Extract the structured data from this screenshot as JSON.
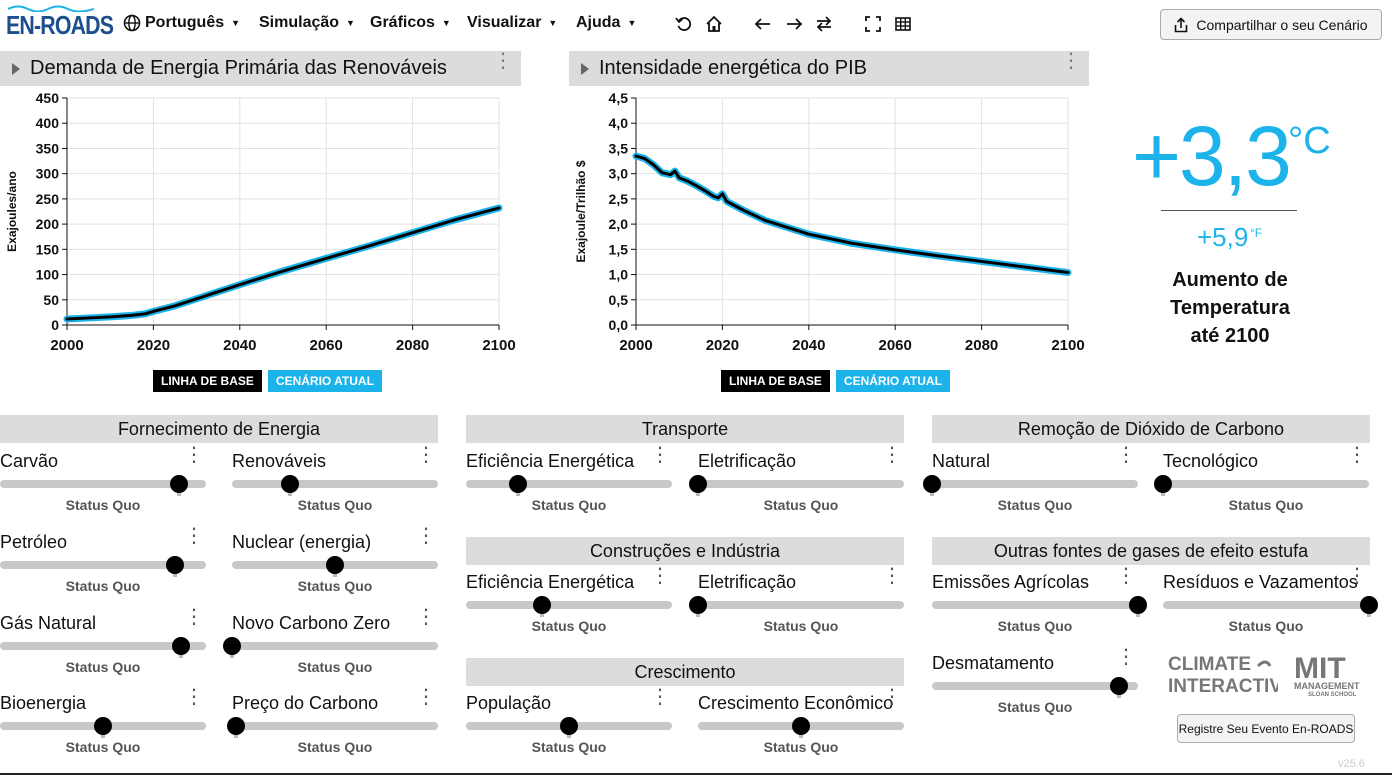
{
  "app": {
    "logo": "EN-ROADS"
  },
  "menu": {
    "language": "Português",
    "simulation": "Simulação",
    "graphs": "Gráficos",
    "view": "Visualizar",
    "help": "Ajuda"
  },
  "share_button": "Compartilhar o seu Cenário",
  "legend": {
    "baseline": "LINHA DE BASE",
    "current": "CENÁRIO ATUAL"
  },
  "colors": {
    "baseline": "#000000",
    "current": "#1bb3ea",
    "header_bg": "#dcdcdc"
  },
  "chart_data": [
    {
      "type": "line",
      "title": "Demanda de Energia Primária das Renováveis",
      "ylabel": "Exajoules/ano",
      "xlabel": "",
      "xlim": [
        2000,
        2100
      ],
      "ylim": [
        0,
        450
      ],
      "xticks": [
        "2000",
        "2020",
        "2040",
        "2060",
        "2080",
        "2100"
      ],
      "yticks": [
        "0",
        "50",
        "100",
        "150",
        "200",
        "250",
        "300",
        "350",
        "400",
        "450"
      ],
      "x": [
        2000,
        2005,
        2010,
        2015,
        2018,
        2020,
        2025,
        2030,
        2035,
        2040,
        2050,
        2060,
        2070,
        2080,
        2090,
        2100
      ],
      "series": [
        {
          "name": "LINHA DE BASE",
          "values": [
            12,
            14,
            16,
            19,
            22,
            27,
            38,
            52,
            66,
            80,
            107,
            132,
            157,
            183,
            209,
            232
          ]
        },
        {
          "name": "CENÁRIO ATUAL",
          "values": [
            12,
            14,
            16,
            19,
            22,
            27,
            38,
            52,
            66,
            80,
            107,
            132,
            157,
            183,
            209,
            232
          ]
        }
      ],
      "grid": true
    },
    {
      "type": "line",
      "title": "Intensidade energética do PIB",
      "ylabel": "Exajoule/Trilhão $",
      "xlabel": "",
      "xlim": [
        2000,
        2100
      ],
      "ylim": [
        0,
        4.5
      ],
      "xticks": [
        "2000",
        "2020",
        "2040",
        "2060",
        "2080",
        "2100"
      ],
      "yticks": [
        "0,0",
        "0,5",
        "1,0",
        "1,5",
        "2,0",
        "2,5",
        "3,0",
        "3,5",
        "4,0",
        "4,5"
      ],
      "x": [
        2000,
        2002,
        2004,
        2006,
        2008,
        2009,
        2010,
        2012,
        2014,
        2016,
        2018,
        2019,
        2020,
        2021,
        2025,
        2030,
        2040,
        2050,
        2060,
        2070,
        2080,
        2090,
        2100
      ],
      "series": [
        {
          "name": "LINHA DE BASE",
          "values": [
            3.35,
            3.3,
            3.18,
            3.02,
            2.98,
            3.05,
            2.92,
            2.85,
            2.76,
            2.66,
            2.55,
            2.52,
            2.6,
            2.45,
            2.27,
            2.07,
            1.8,
            1.62,
            1.49,
            1.37,
            1.26,
            1.15,
            1.04
          ]
        },
        {
          "name": "CENÁRIO ATUAL",
          "values": [
            3.35,
            3.3,
            3.18,
            3.02,
            2.98,
            3.05,
            2.92,
            2.85,
            2.76,
            2.66,
            2.55,
            2.52,
            2.6,
            2.45,
            2.27,
            2.07,
            1.8,
            1.62,
            1.49,
            1.37,
            1.26,
            1.15,
            1.04
          ]
        }
      ],
      "grid": true
    }
  ],
  "temperature": {
    "celsius": "+3,3",
    "celsius_unit": "°C",
    "fahrenheit": "+5,9",
    "fahrenheit_unit": "°F",
    "label_line1": "Aumento de",
    "label_line2": "Temperatura",
    "label_line3": "até 2100"
  },
  "sections": {
    "energy_supply": "Fornecimento de Energia",
    "transport": "Transporte",
    "buildings": "Construções e Indústria",
    "growth": "Crescimento",
    "carbon_removal": "Remoção de Dióxido de Carbono",
    "other_gases": "Outras fontes de gases de efeito estufa"
  },
  "sliders": {
    "coal": {
      "label": "Carvão",
      "status": "Status Quo",
      "value": 0.87
    },
    "renewables": {
      "label": "Renováveis",
      "status": "Status Quo",
      "value": 0.28
    },
    "oil": {
      "label": "Petróleo",
      "status": "Status Quo",
      "value": 0.85
    },
    "nuclear": {
      "label": "Nuclear (energia)",
      "status": "Status Quo",
      "value": 0.5
    },
    "natural_gas": {
      "label": "Gás Natural",
      "status": "Status Quo",
      "value": 0.88
    },
    "new_zero_carbon": {
      "label": "Novo Carbono Zero",
      "status": "Status Quo",
      "value": 0.0
    },
    "bioenergy": {
      "label": "Bioenergia",
      "status": "Status Quo",
      "value": 0.5
    },
    "carbon_price": {
      "label": "Preço do Carbono",
      "status": "Status Quo",
      "value": 0.02
    },
    "transport_efficiency": {
      "label": "Eficiência Energética",
      "status": "Status Quo",
      "value": 0.25
    },
    "transport_electrification": {
      "label": "Eletrificação",
      "status": "Status Quo",
      "value": 0.0
    },
    "buildings_efficiency": {
      "label": "Eficiência Energética",
      "status": "Status Quo",
      "value": 0.37
    },
    "buildings_electrification": {
      "label": "Eletrificação",
      "status": "Status Quo",
      "value": 0.0
    },
    "population": {
      "label": "População",
      "status": "Status Quo",
      "value": 0.5
    },
    "economic_growth": {
      "label": "Crescimento Econômico",
      "status": "Status Quo",
      "value": 0.5
    },
    "natural_removal": {
      "label": "Natural",
      "status": "Status Quo",
      "value": 0.0
    },
    "tech_removal": {
      "label": "Tecnológico",
      "status": "Status Quo",
      "value": 0.0
    },
    "agriculture": {
      "label": "Emissões Agrícolas",
      "status": "Status Quo",
      "value": 1.0
    },
    "waste_leakage": {
      "label": "Resíduos e Vazamentos",
      "status": "Status Quo",
      "value": 1.0
    },
    "deforestation": {
      "label": "Desmatamento",
      "status": "Status Quo",
      "value": 0.91
    }
  },
  "logos": {
    "climate_interactive": "CLIMATE INTERACTIVE",
    "mit": "MIT MANAGEMENT SLOAN SCHOOL"
  },
  "register_button": "Registre Seu Evento En-ROADS",
  "version": "v25.6"
}
